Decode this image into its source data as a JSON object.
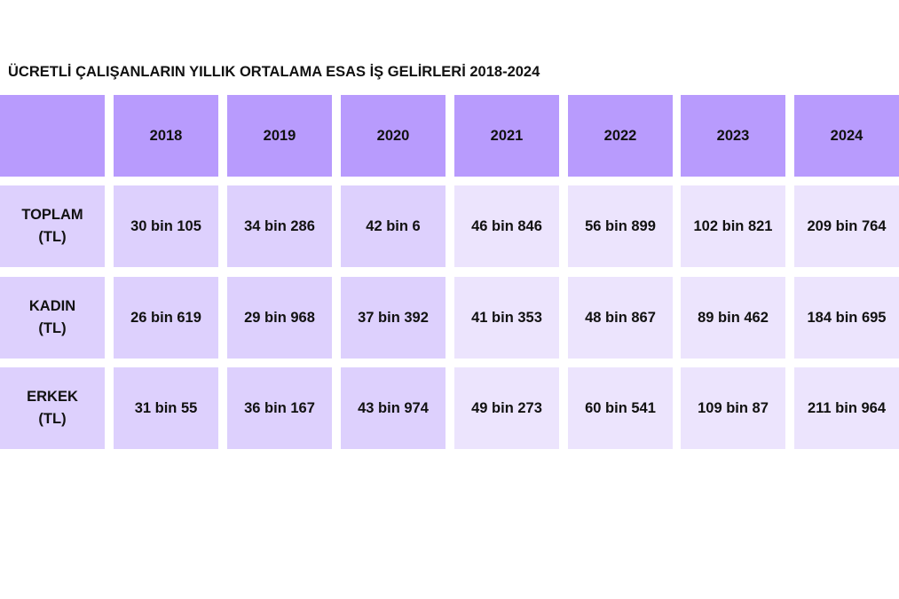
{
  "chart_data": {
    "type": "table",
    "title": "ÜCRETLİ ÇALIŞANLARIN YILLIK ORTALAMA ESAS İŞ GELİRLERİ 2018-2024",
    "columns": [
      "2018",
      "2019",
      "2020",
      "2021",
      "2022",
      "2023",
      "2024"
    ],
    "rows": [
      {
        "label_line1": "TOPLAM",
        "label_line2": "(TL)",
        "values": [
          "30 bin 105",
          "34 bin 286",
          "42 bin 6",
          "46 bin 846",
          "56 bin 899",
          "102 bin 821",
          "209 bin 764"
        ]
      },
      {
        "label_line1": "KADIN",
        "label_line2": "(TL)",
        "values": [
          "26 bin 619",
          "29 bin 968",
          "37 bin 392",
          "41 bin 353",
          "48 bin 867",
          "89 bin 462",
          "184 bin 695"
        ]
      },
      {
        "label_line1": "ERKEK",
        "label_line2": "(TL)",
        "values": [
          "31 bin 55",
          "36 bin 167",
          "43 bin 974",
          "49 bin 273",
          "60 bin 541",
          "109 bin 87",
          "211 bin 964"
        ]
      }
    ]
  },
  "colors": {
    "header": "#b89bfd",
    "body_dark": "#ddd0fd",
    "body_light": "#ece4fd",
    "text": "#111111"
  }
}
